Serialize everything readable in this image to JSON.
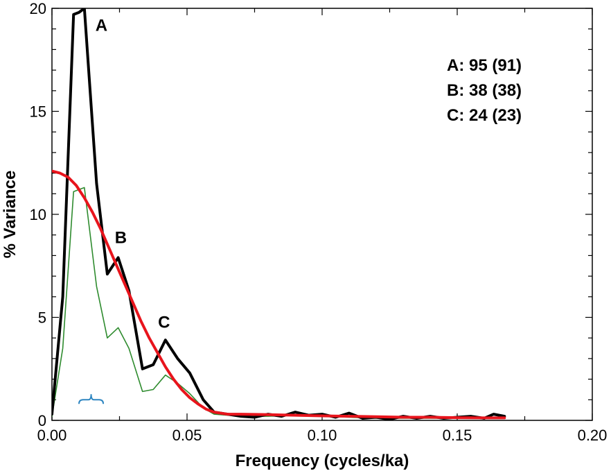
{
  "chart_data": {
    "type": "line",
    "xlabel": "Frequency (cycles/ka)",
    "ylabel": "% Variance",
    "xlim": [
      0,
      0.2
    ],
    "ylim": [
      0,
      20
    ],
    "x_ticks": [
      0,
      0.05,
      0.1,
      0.15,
      0.2
    ],
    "x_tick_labels": [
      "0.00",
      "0.05",
      "0.10",
      "0.15",
      "0.20"
    ],
    "y_ticks": [
      0,
      5,
      10,
      15,
      20
    ],
    "y_tick_labels": [
      "0",
      "5",
      "10",
      "15",
      "20"
    ],
    "grid": false,
    "series": [
      {
        "color": "#000000",
        "x": [
          0,
          0.004,
          0.008,
          0.01,
          0.012,
          0.0165,
          0.0205,
          0.0245,
          0.0285,
          0.0335,
          0.0375,
          0.042,
          0.0465,
          0.051,
          0.056,
          0.06,
          0.065,
          0.07,
          0.075,
          0.08,
          0.085,
          0.09,
          0.095,
          0.1,
          0.105,
          0.11,
          0.115,
          0.12,
          0.125,
          0.13,
          0.135,
          0.14,
          0.145,
          0.15,
          0.155,
          0.16,
          0.1635,
          0.1675
        ],
        "y": [
          0.3,
          6,
          19.7,
          19.8,
          20,
          11.5,
          7.1,
          7.9,
          6.3,
          2.5,
          2.7,
          3.9,
          3.0,
          2.3,
          1.0,
          0.4,
          0.3,
          0.2,
          0.15,
          0.3,
          0.2,
          0.4,
          0.25,
          0.3,
          0.15,
          0.35,
          0.1,
          0.15,
          0.05,
          0.2,
          0.1,
          0.2,
          0.1,
          0.15,
          0.2,
          0.1,
          0.3,
          0.2
        ]
      },
      {
        "color": "#2e8b2e",
        "x": [
          0,
          0.004,
          0.008,
          0.012,
          0.0165,
          0.0205,
          0.0245,
          0.0285,
          0.0335,
          0.0375,
          0.042,
          0.0465,
          0.051,
          0.056,
          0.06,
          0.065,
          0.07,
          0.08,
          0.09,
          0.1,
          0.11,
          0.12,
          0.13,
          0.14,
          0.15,
          0.16,
          0.1675
        ],
        "y": [
          0.2,
          3.5,
          11.1,
          11.3,
          6.5,
          4.0,
          4.5,
          3.5,
          1.4,
          1.5,
          2.2,
          1.8,
          1.3,
          0.6,
          0.3,
          0.25,
          0.2,
          0.2,
          0.25,
          0.2,
          0.15,
          0.1,
          0.1,
          0.1,
          0.1,
          0.1,
          0.1
        ]
      },
      {
        "color": "#e8141c",
        "x": [
          0,
          0.003,
          0.006,
          0.009,
          0.012,
          0.015,
          0.018,
          0.021,
          0.024,
          0.027,
          0.03,
          0.033,
          0.036,
          0.039,
          0.042,
          0.045,
          0.048,
          0.051,
          0.054,
          0.057,
          0.06,
          0.065,
          0.07,
          0.08,
          0.09,
          0.1,
          0.11,
          0.12,
          0.13,
          0.14,
          0.15,
          0.16,
          0.1675
        ],
        "y": [
          12.1,
          12.0,
          11.8,
          11.4,
          10.8,
          10.1,
          9.3,
          8.4,
          7.5,
          6.6,
          5.7,
          4.8,
          4.0,
          3.3,
          2.6,
          2.0,
          1.5,
          1.1,
          0.8,
          0.55,
          0.4,
          0.3,
          0.3,
          0.28,
          0.25,
          0.22,
          0.2,
          0.18,
          0.15,
          0.15,
          0.13,
          0.12,
          0.12
        ]
      }
    ],
    "peak_labels": [
      {
        "text": "A",
        "x": 0.0183,
        "y": 18.9
      },
      {
        "text": "B",
        "x": 0.0255,
        "y": 8.6
      },
      {
        "text": "C",
        "x": 0.0415,
        "y": 4.5
      }
    ],
    "bracket": {
      "color": "#2e86c1",
      "x_start": 0.01,
      "x_end": 0.019,
      "y": 1.0
    },
    "legend_placement": "top-right",
    "legend": [
      "A: 95 (91)",
      "B: 38 (38)",
      "C: 24 (23)"
    ]
  }
}
